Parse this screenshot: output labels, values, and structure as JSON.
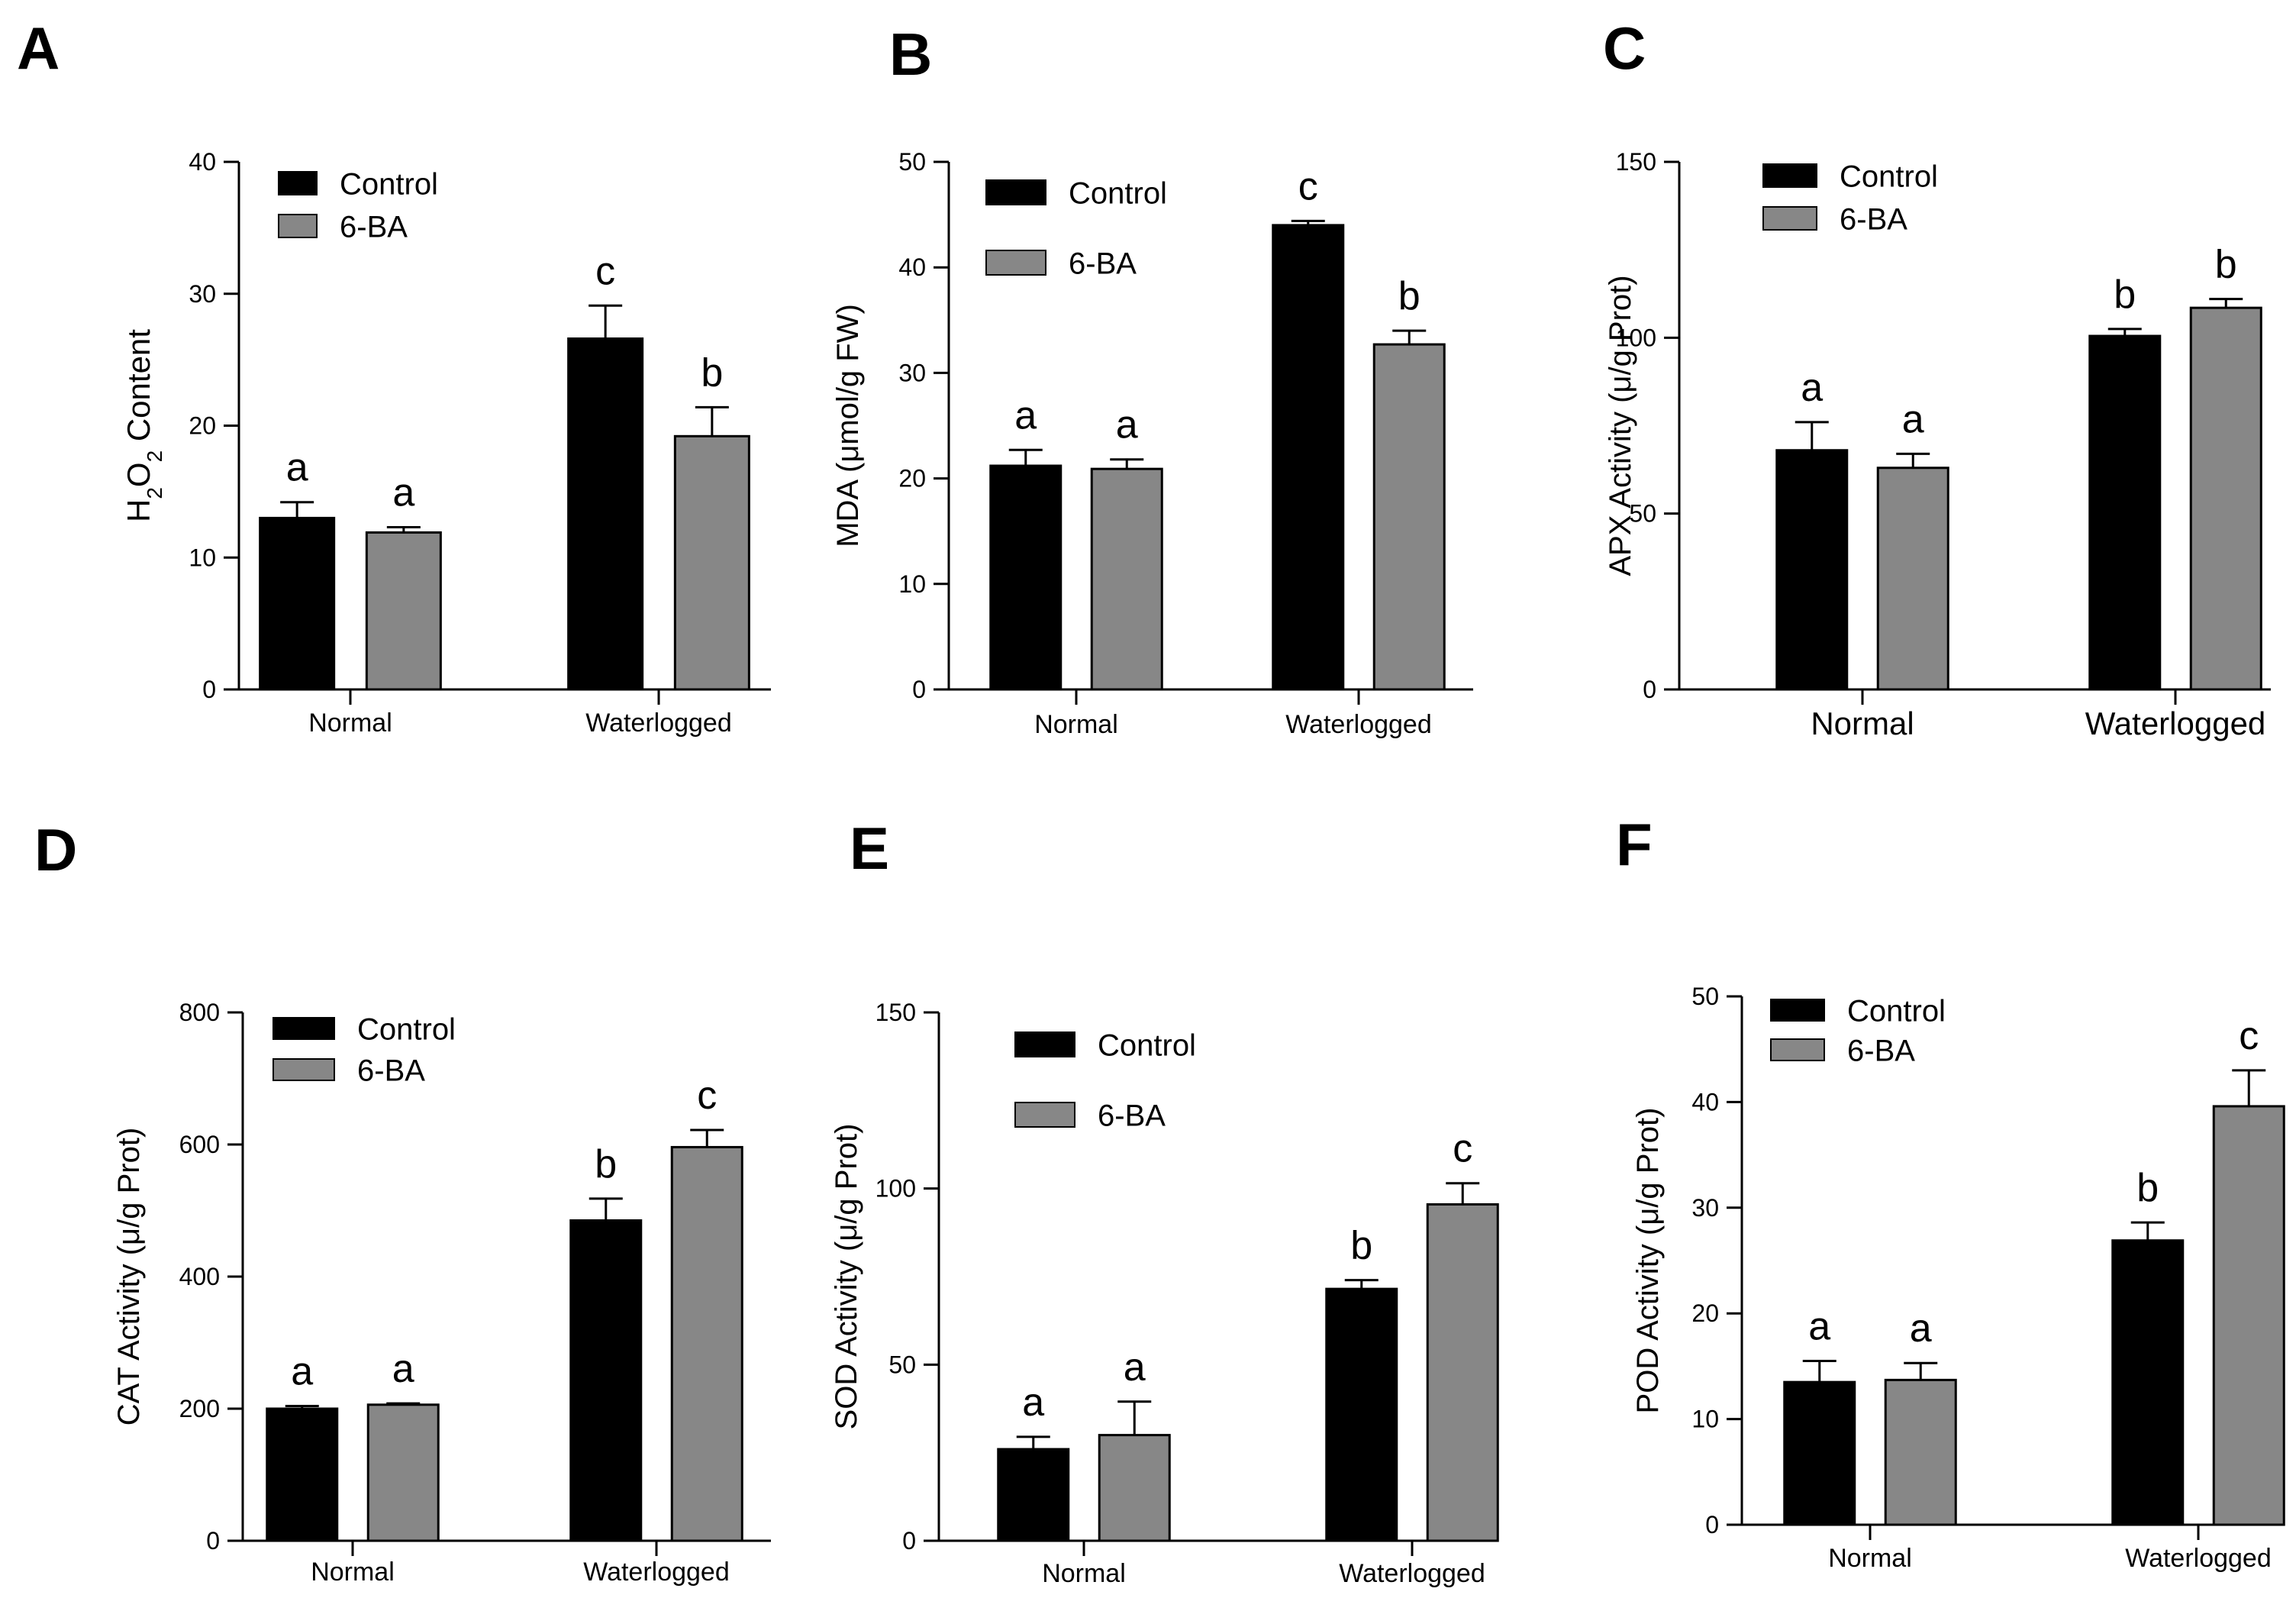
{
  "figure": {
    "panels": [
      "A",
      "B",
      "C",
      "D",
      "E",
      "F"
    ]
  },
  "colors": {
    "control": "#000000",
    "six_ba": "#878787",
    "axis": "#000000",
    "background": "#ffffff"
  },
  "chart_data": [
    {
      "panel": "A",
      "type": "bar",
      "categories": [
        "Normal",
        "Waterlogged"
      ],
      "ylabel": "",
      "ylabel_parts": [
        "H",
        "2",
        "O",
        "2",
        " Content"
      ],
      "ylim": [
        0,
        40
      ],
      "yticks": [
        0,
        10,
        20,
        30,
        40
      ],
      "grid": false,
      "legend_position": "top-left",
      "series": [
        {
          "name": "Control",
          "values": [
            13.0,
            26.6
          ],
          "errors": [
            1.2,
            2.5
          ],
          "letters": [
            "a",
            "c"
          ],
          "color": "#000000"
        },
        {
          "name": "6-BA",
          "values": [
            11.9,
            19.2
          ],
          "errors": [
            0.4,
            2.2
          ],
          "letters": [
            "a",
            "b"
          ],
          "color": "#878787"
        }
      ]
    },
    {
      "panel": "B",
      "type": "bar",
      "categories": [
        "Normal",
        "Waterlogged"
      ],
      "ylabel": "MDA (μmol/g FW)",
      "ylim": [
        0,
        50
      ],
      "yticks": [
        0,
        10,
        20,
        30,
        40,
        50
      ],
      "grid": false,
      "legend_position": "top-left",
      "series": [
        {
          "name": "Control",
          "values": [
            21.2,
            44.0
          ],
          "errors": [
            1.5,
            0.4
          ],
          "letters": [
            "a",
            "c"
          ],
          "color": "#000000"
        },
        {
          "name": "6-BA",
          "values": [
            20.9,
            32.7
          ],
          "errors": [
            0.9,
            1.3
          ],
          "letters": [
            "a",
            "b"
          ],
          "color": "#878787"
        }
      ]
    },
    {
      "panel": "C",
      "type": "bar",
      "categories": [
        "Normal",
        "Waterlogged"
      ],
      "ylabel": "APX Activity (μ/g Prot)",
      "ylim": [
        0,
        150
      ],
      "yticks": [
        0,
        50,
        100,
        150
      ],
      "grid": false,
      "legend_position": "top-left",
      "series": [
        {
          "name": "Control",
          "values": [
            68,
            100.5
          ],
          "errors": [
            8,
            2
          ],
          "letters": [
            "a",
            "b"
          ],
          "color": "#000000"
        },
        {
          "name": "6-BA",
          "values": [
            63,
            108.5
          ],
          "errors": [
            4,
            2.5
          ],
          "letters": [
            "a",
            "b"
          ],
          "color": "#878787"
        }
      ]
    },
    {
      "panel": "D",
      "type": "bar",
      "categories": [
        "Normal",
        "Waterlogged"
      ],
      "ylabel": "CAT Activity (μ/g Prot)",
      "ylim": [
        0,
        800
      ],
      "yticks": [
        0,
        200,
        400,
        600,
        800
      ],
      "grid": false,
      "legend_position": "top-left",
      "series": [
        {
          "name": "Control",
          "values": [
            200,
            485
          ],
          "errors": [
            4,
            33
          ],
          "letters": [
            "a",
            "b"
          ],
          "color": "#000000"
        },
        {
          "name": "6-BA",
          "values": [
            206,
            596
          ],
          "errors": [
            2,
            26
          ],
          "letters": [
            "a",
            "c"
          ],
          "color": "#878787"
        }
      ]
    },
    {
      "panel": "E",
      "type": "bar",
      "categories": [
        "Normal",
        "Waterlogged"
      ],
      "ylabel": "SOD Activity (μ/g Prot)",
      "ylim": [
        0,
        150
      ],
      "yticks": [
        0,
        50,
        100,
        150
      ],
      "grid": false,
      "legend_position": "top-left",
      "series": [
        {
          "name": "Control",
          "values": [
            26,
            71.5
          ],
          "errors": [
            3.5,
            2.5
          ],
          "letters": [
            "a",
            "b"
          ],
          "color": "#000000"
        },
        {
          "name": "6-BA",
          "values": [
            30,
            95.5
          ],
          "errors": [
            9.5,
            6
          ],
          "letters": [
            "a",
            "c"
          ],
          "color": "#878787"
        }
      ]
    },
    {
      "panel": "F",
      "type": "bar",
      "categories": [
        "Normal",
        "Waterlogged"
      ],
      "ylabel": "POD Activity (μ/g Prot)",
      "ylim": [
        0,
        50
      ],
      "yticks": [
        0,
        10,
        20,
        30,
        40,
        50
      ],
      "grid": false,
      "legend_position": "top-left",
      "series": [
        {
          "name": "Control",
          "values": [
            13.5,
            26.9
          ],
          "errors": [
            2.0,
            1.7
          ],
          "letters": [
            "a",
            "b"
          ],
          "color": "#000000"
        },
        {
          "name": "6-BA",
          "values": [
            13.7,
            39.6
          ],
          "errors": [
            1.6,
            3.4
          ],
          "letters": [
            "a",
            "c"
          ],
          "color": "#878787"
        }
      ]
    }
  ]
}
